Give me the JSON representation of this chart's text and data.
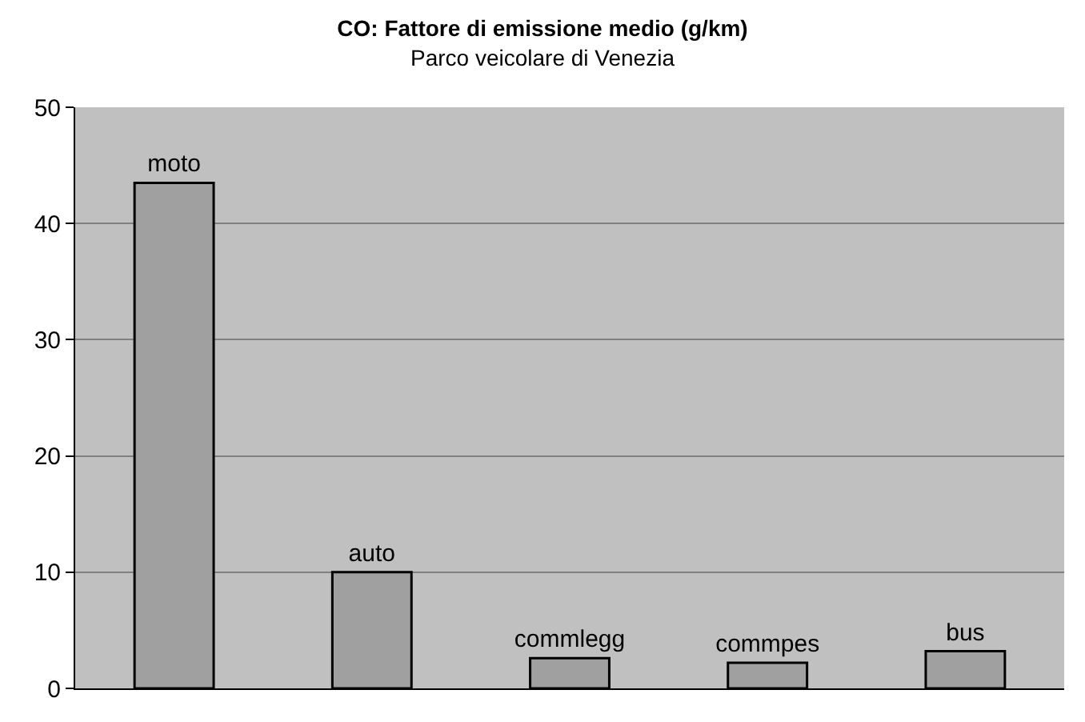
{
  "chart_data": {
    "type": "bar",
    "title": "CO: Fattore di emissione medio (g/km)",
    "subtitle": "Parco veicolare di Venezia",
    "categories": [
      "moto",
      "auto",
      "commlegg",
      "commpes",
      "bus"
    ],
    "values": [
      43.5,
      10.0,
      2.6,
      2.2,
      3.2
    ],
    "color": "#a0a0a0",
    "ylim": [
      0,
      50
    ],
    "yticks": [
      0,
      10,
      20,
      30,
      40,
      50
    ],
    "grid": "y",
    "tick_labels": "y"
  }
}
